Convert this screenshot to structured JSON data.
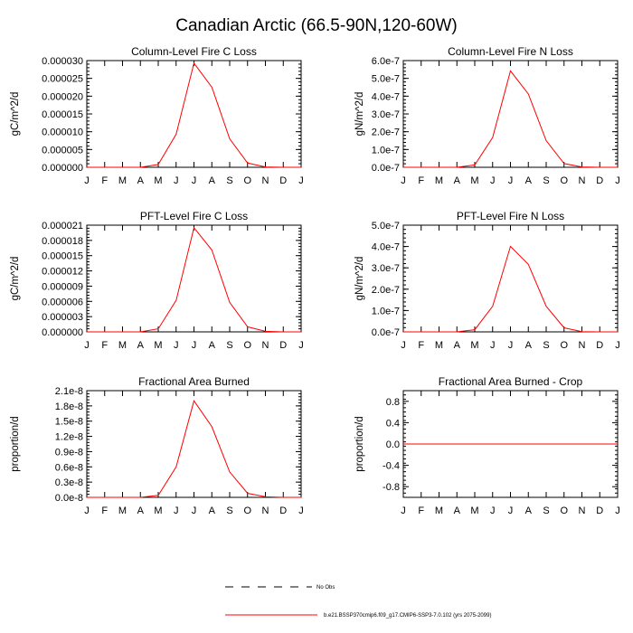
{
  "page_title": "Canadian Arctic (66.5-90N,120-60W)",
  "colors": {
    "series": "#ff0000",
    "axes": "#000000",
    "obs": "#000000"
  },
  "legend": {
    "obs_label": "No Obs",
    "model_label": "b.e21.BSSP370cmip6.f09_g17.CMIP6-SSP3-7.0.102 (yrs 2075-2099)"
  },
  "chart_data": [
    {
      "type": "line",
      "title": "Column-Level Fire C Loss",
      "ylabel": "gC/m^2/d",
      "x": [
        "J",
        "F",
        "M",
        "A",
        "M",
        "J",
        "J",
        "A",
        "S",
        "O",
        "N",
        "D",
        "J"
      ],
      "ylim": [
        0,
        3e-05
      ],
      "yticks": [
        "0.000000",
        "0.000005",
        "0.000010",
        "0.000015",
        "0.000020",
        "0.000025",
        "0.000030"
      ],
      "series": [
        {
          "values": [
            0,
            0,
            0,
            0,
            8e-07,
            9.3e-06,
            2.93e-05,
            2.25e-05,
            8e-06,
            1.2e-06,
            1e-07,
            0,
            0
          ]
        }
      ]
    },
    {
      "type": "line",
      "title": "Column-Level Fire N Loss",
      "ylabel": "gN/m^2/d",
      "x": [
        "J",
        "F",
        "M",
        "A",
        "M",
        "J",
        "J",
        "A",
        "S",
        "O",
        "N",
        "D",
        "J"
      ],
      "ylim": [
        0,
        6e-07
      ],
      "yticks": [
        "0.0e-7",
        "1.0e-7",
        "2.0e-7",
        "3.0e-7",
        "4.0e-7",
        "5.0e-7",
        "6.0e-7"
      ],
      "series": [
        {
          "values": [
            0,
            0,
            0,
            0,
            1.3e-08,
            1.68e-07,
            5.42e-07,
            4.12e-07,
            1.5e-07,
            2.1e-08,
            2e-09,
            0,
            0
          ]
        }
      ]
    },
    {
      "type": "line",
      "title": "PFT-Level Fire C Loss",
      "ylabel": "gC/m^2/d",
      "x": [
        "J",
        "F",
        "M",
        "A",
        "M",
        "J",
        "J",
        "A",
        "S",
        "O",
        "N",
        "D",
        "J"
      ],
      "ylim": [
        0,
        2.1e-05
      ],
      "yticks": [
        "0.000000",
        "0.000003",
        "0.000006",
        "0.000009",
        "0.000012",
        "0.000015",
        "0.000018",
        "0.000021"
      ],
      "series": [
        {
          "values": [
            0,
            0,
            0,
            0,
            6e-07,
            6.2e-06,
            2.05e-05,
            1.61e-05,
            5.8e-06,
            1e-06,
            1e-07,
            0,
            0
          ]
        }
      ]
    },
    {
      "type": "line",
      "title": "PFT-Level Fire N Loss",
      "ylabel": "gN/m^2/d",
      "x": [
        "J",
        "F",
        "M",
        "A",
        "M",
        "J",
        "J",
        "A",
        "S",
        "O",
        "N",
        "D",
        "J"
      ],
      "ylim": [
        0,
        5e-07
      ],
      "yticks": [
        "0.0e-7",
        "1.0e-7",
        "2.0e-7",
        "3.0e-7",
        "4.0e-7",
        "5.0e-7"
      ],
      "series": [
        {
          "values": [
            0,
            0,
            0,
            0,
            1e-08,
            1.2e-07,
            4.01e-07,
            3.16e-07,
            1.2e-07,
            1.9e-08,
            1e-09,
            0,
            0
          ]
        }
      ]
    },
    {
      "type": "line",
      "title": "Fractional Area Burned",
      "ylabel": "proportion/d",
      "x": [
        "J",
        "F",
        "M",
        "A",
        "M",
        "J",
        "J",
        "A",
        "S",
        "O",
        "N",
        "D",
        "J"
      ],
      "ylim": [
        0,
        2.1e-08
      ],
      "yticks": [
        "0.0e-8",
        "0.3e-8",
        "0.6e-8",
        "0.9e-8",
        "1.2e-8",
        "1.5e-8",
        "1.8e-8",
        "2.1e-8"
      ],
      "series": [
        {
          "values": [
            0,
            0,
            0,
            0,
            4e-10,
            6e-09,
            1.9e-08,
            1.39e-08,
            5e-09,
            8e-10,
            1e-10,
            0,
            0
          ]
        }
      ]
    },
    {
      "type": "line",
      "title": "Fractional Area Burned - Crop",
      "ylabel": "proportion/d",
      "x": [
        "J",
        "F",
        "M",
        "A",
        "M",
        "J",
        "J",
        "A",
        "S",
        "O",
        "N",
        "D",
        "J"
      ],
      "ylim": [
        -1.0,
        1.0
      ],
      "yticks": [
        "-0.8",
        "-0.4",
        "0.0",
        "0.4",
        "0.8"
      ],
      "ytick_values": [
        -0.8,
        -0.4,
        0.0,
        0.4,
        0.8
      ],
      "series": [
        {
          "values": [
            0,
            0,
            0,
            0,
            0,
            0,
            0,
            0,
            0,
            0,
            0,
            0,
            0
          ]
        }
      ]
    }
  ]
}
